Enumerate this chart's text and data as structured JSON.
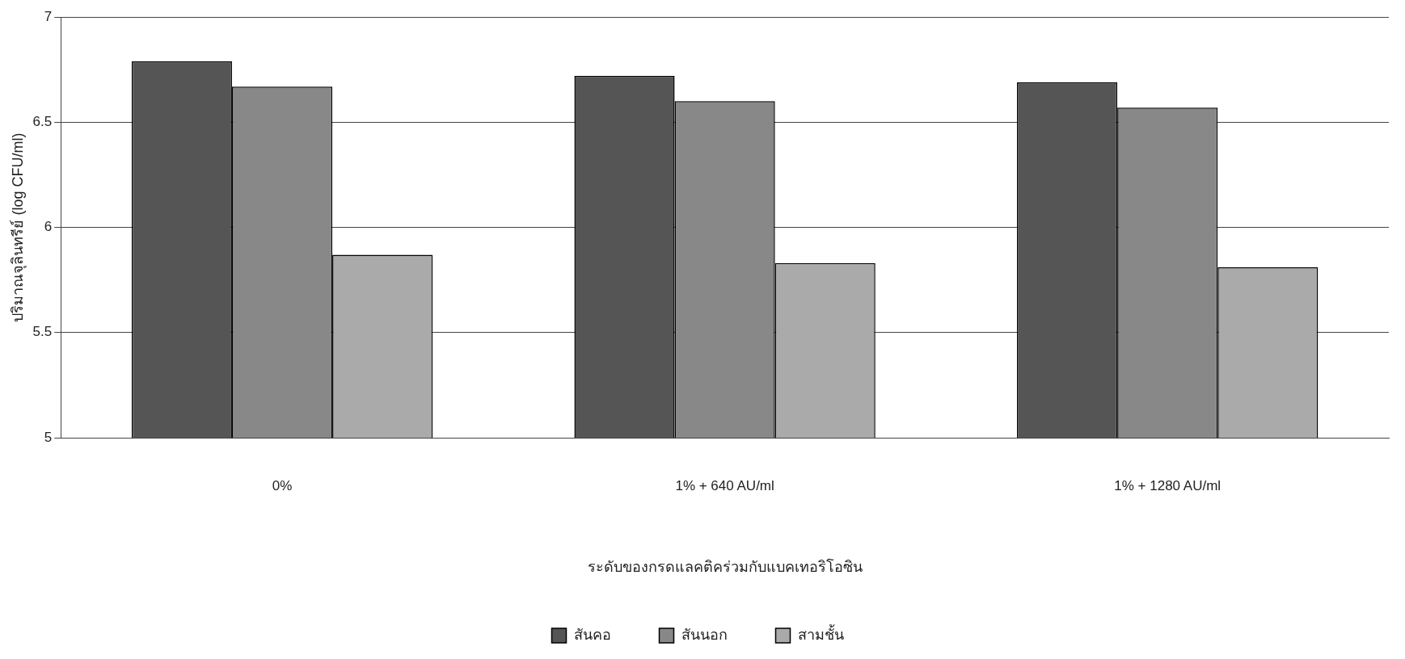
{
  "chart_data": {
    "type": "bar",
    "xlabel": "ระดับของกรดแลคติคร่วมกับแบคเทอริโอซิน",
    "ylabel": "ปริมาณจุลินทรีย์ (log CFU/ml)",
    "categories": [
      "0%",
      "1% + 640 AU/ml",
      "1% + 1280 AU/ml"
    ],
    "series": [
      {
        "name": "สันคอ",
        "color": "#555555",
        "values": [
          6.79,
          6.72,
          6.69
        ]
      },
      {
        "name": "สันนอก",
        "color": "#888888",
        "values": [
          6.67,
          6.6,
          6.57
        ]
      },
      {
        "name": "สามชั้น",
        "color": "#aaaaaa",
        "values": [
          5.87,
          5.83,
          5.81
        ]
      }
    ],
    "ylim": [
      5,
      7
    ],
    "yticks": [
      5,
      5.5,
      6,
      6.5,
      7
    ],
    "grid": "y",
    "legend": "bottom"
  }
}
